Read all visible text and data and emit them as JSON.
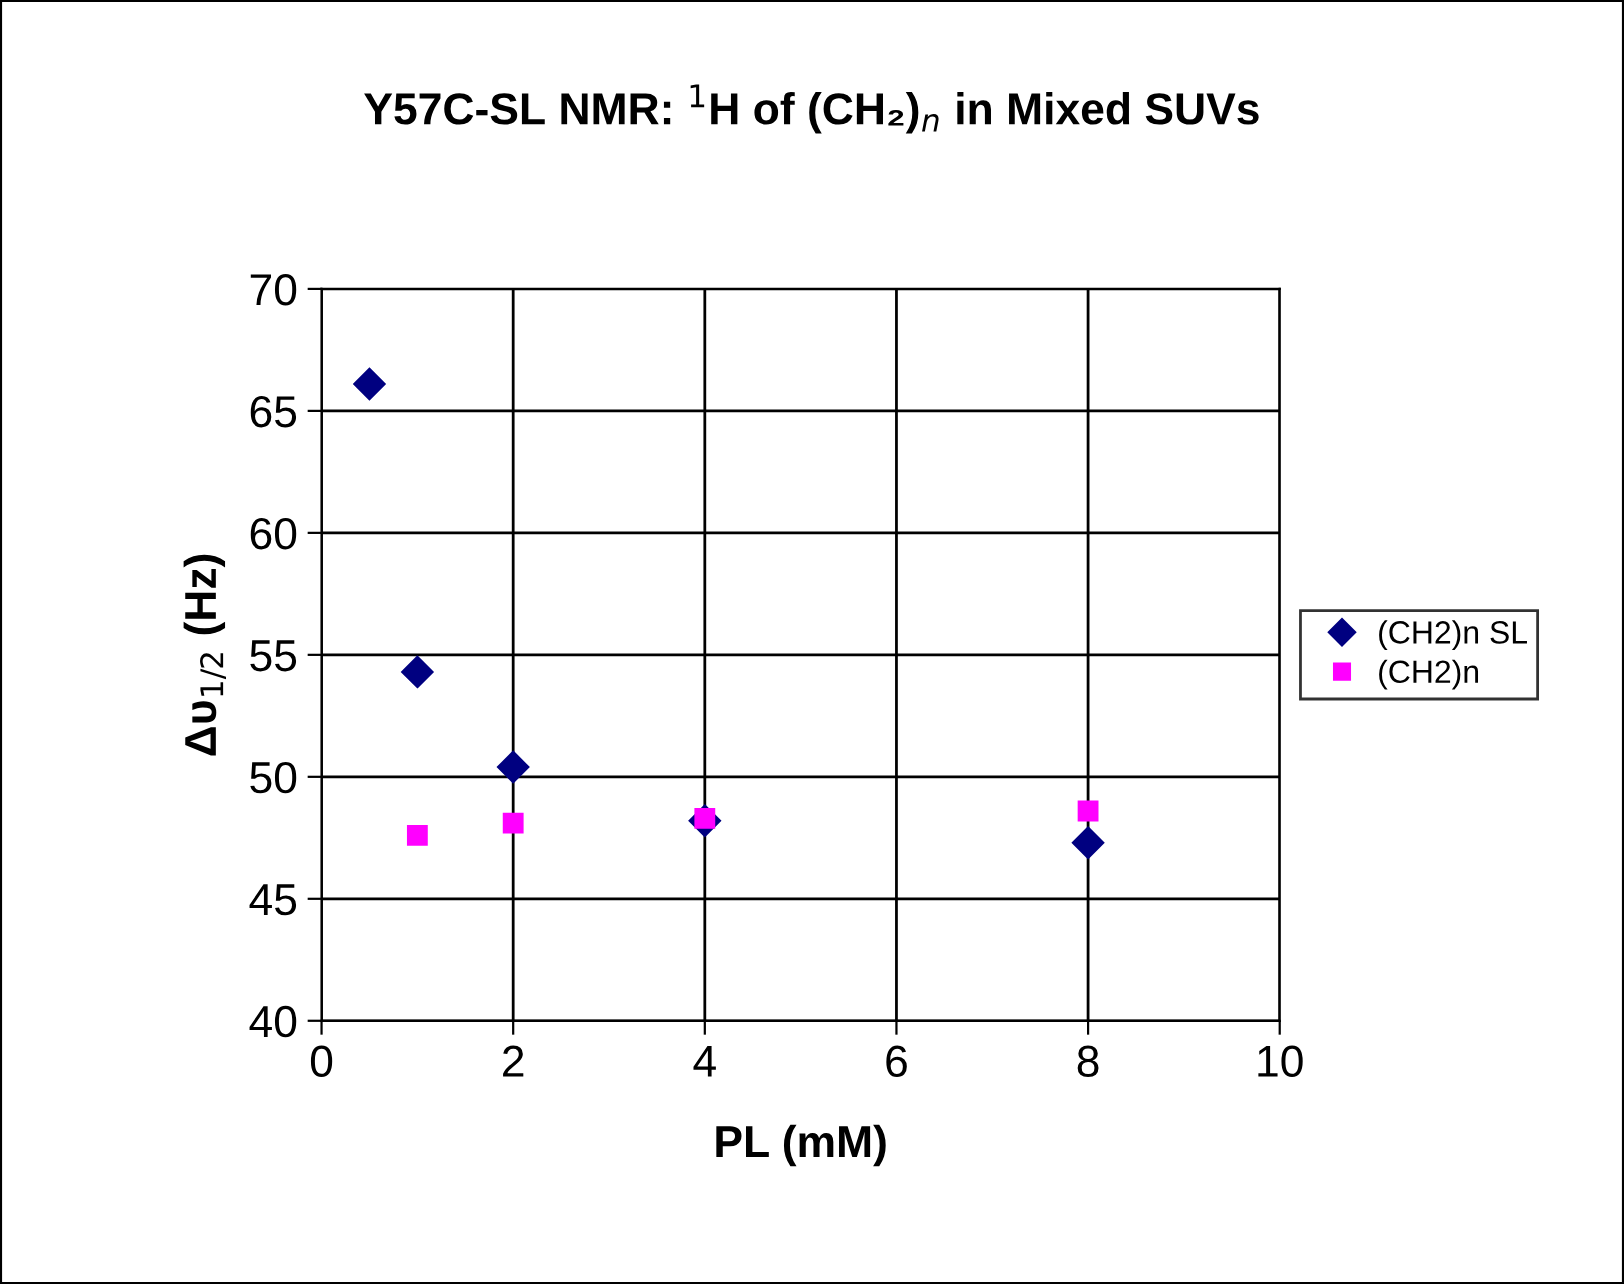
{
  "chart_data": {
    "type": "scatter",
    "title": "Y57C-SL NMR: $^{1}$H of (CH₂)$_{n}$ in Mixed SUVs",
    "xlabel": "PL (mM)",
    "ylabel": "Δυ$_{1/2}$ (Hz)",
    "xlim": [
      0,
      10
    ],
    "xticks": [
      0,
      2,
      4,
      6,
      8,
      10
    ],
    "ylim": [
      40,
      70
    ],
    "yticks": [
      40,
      45,
      50,
      55,
      60,
      65,
      70
    ],
    "grid": true,
    "legend": "right",
    "series": [
      {
        "name": "(CH2)n SL",
        "color": "#000080",
        "marker": "diamond",
        "x": [
          0.5,
          1,
          2,
          4,
          8
        ],
        "values": [
          66.1,
          54.3,
          50.4,
          48.2,
          47.3
        ]
      },
      {
        "name": "(CH2)n",
        "color": "#ff00ff",
        "marker": "square",
        "x": [
          1,
          2,
          4,
          8
        ],
        "values": [
          47.6,
          48.1,
          48.3,
          48.6
        ]
      }
    ]
  }
}
